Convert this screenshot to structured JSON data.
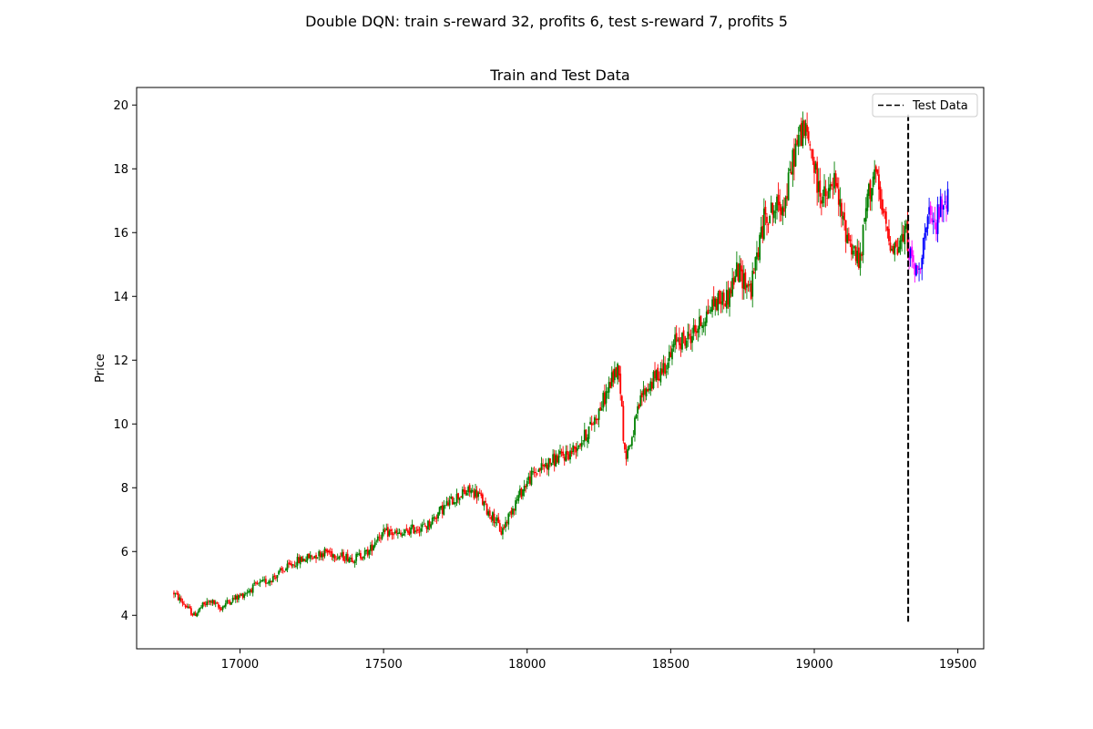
{
  "chart_data": {
    "type": "candlestick",
    "suptitle": "Double DQN: train s-reward 32, profits 6, test s-reward 7, profits 5",
    "title": "Train and Test Data",
    "xlabel": "",
    "ylabel": "Price",
    "xlim": [
      16640,
      19590
    ],
    "ylim": [
      2.95,
      20.55
    ],
    "xticks": [
      17000,
      17500,
      18000,
      18500,
      19000,
      19500
    ],
    "yticks": [
      4,
      6,
      8,
      10,
      12,
      14,
      16,
      18,
      20
    ],
    "grid": false,
    "legend": {
      "placement": "upper right",
      "entries": [
        {
          "label": "Test Data",
          "style": "dashed",
          "color": "#000000"
        }
      ]
    },
    "test_split": {
      "x": 19327,
      "ymin": 3.8,
      "ymax": 19.7
    },
    "price_anchors": {
      "x": [
        16770,
        16800,
        16840,
        16870,
        16900,
        16930,
        16960,
        17000,
        17050,
        17100,
        17150,
        17200,
        17250,
        17300,
        17350,
        17400,
        17450,
        17480,
        17520,
        17560,
        17600,
        17650,
        17700,
        17750,
        17800,
        17830,
        17860,
        17890,
        17910,
        17950,
        18000,
        18030,
        18060,
        18100,
        18150,
        18200,
        18250,
        18300,
        18320,
        18340,
        18360,
        18400,
        18450,
        18500,
        18520,
        18550,
        18600,
        18650,
        18700,
        18730,
        18750,
        18780,
        18800,
        18830,
        18860,
        18900,
        18930,
        18960,
        18990,
        19010,
        19040,
        19070,
        19100,
        19130,
        19160,
        19180,
        19210,
        19230,
        19260,
        19290,
        19320,
        19340,
        19360,
        19380,
        19400,
        19420,
        19440,
        19465
      ],
      "y": [
        4.7,
        4.4,
        4.0,
        4.3,
        4.45,
        4.2,
        4.45,
        4.6,
        4.9,
        5.1,
        5.4,
        5.7,
        5.85,
        6.0,
        5.85,
        5.8,
        6.0,
        6.5,
        6.6,
        6.5,
        6.7,
        6.8,
        7.3,
        7.7,
        7.9,
        7.8,
        7.3,
        7.0,
        6.6,
        7.4,
        8.2,
        8.5,
        8.7,
        8.9,
        9.1,
        9.6,
        10.4,
        11.5,
        11.8,
        9.0,
        9.4,
        10.9,
        11.5,
        12.1,
        12.7,
        12.6,
        13.1,
        13.8,
        14.0,
        14.8,
        14.6,
        14.2,
        15.3,
        16.6,
        16.7,
        17.0,
        18.5,
        19.3,
        18.6,
        17.5,
        17.0,
        17.6,
        16.3,
        15.6,
        15.0,
        16.8,
        18.0,
        16.9,
        15.8,
        15.5,
        16.0,
        15.0,
        14.7,
        15.7,
        16.4,
        16.2,
        16.8,
        17.2
      ]
    },
    "candle_spacing": 5,
    "colors": {
      "train_up": "#008000",
      "train_down": "#ff0000",
      "test_up": "#0000ff",
      "test_down": "#ff00ff",
      "split_line": "#000000"
    }
  }
}
